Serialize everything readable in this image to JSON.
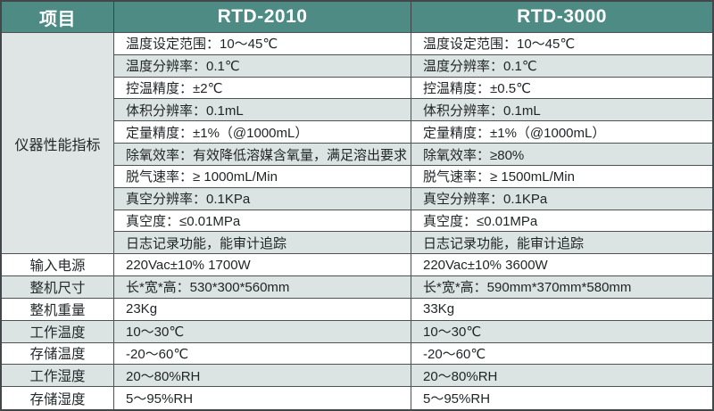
{
  "colors": {
    "header_bg": "#4e8b85",
    "header_text": "#ffffff",
    "row_white": "#ffffff",
    "row_gray": "#dce4e3",
    "group_cell_bg": "#dee5e4",
    "border": "#4d5254",
    "text": "#1f2425"
  },
  "table": {
    "header": {
      "item": "项目",
      "col_rtd2010": "RTD-2010",
      "col_rtd3000": "RTD-3000"
    },
    "performance_group": "仪器性能指标",
    "performance_rows": [
      {
        "rtd2010": "温度设定范围：10～45℃",
        "rtd3000": "温度设定范围：10～45℃"
      },
      {
        "rtd2010": "温度分辨率：0.1℃",
        "rtd3000": "温度分辨率：0.1℃"
      },
      {
        "rtd2010": "控温精度：±2℃",
        "rtd3000": "控温精度：±0.5℃"
      },
      {
        "rtd2010": "体积分辨率：0.1mL",
        "rtd3000": "体积分辨率：0.1mL"
      },
      {
        "rtd2010": "定量精度：±1%（@1000mL）",
        "rtd3000": "定量精度：±1%（@1000mL）"
      },
      {
        "rtd2010": "除氧效率：有效降低溶媒含氧量，满足溶出要求",
        "rtd3000": "除氧效率：≥80%"
      },
      {
        "rtd2010": "脱气速率：≥ 1000mL/Min",
        "rtd3000": "脱气速率：≥ 1500mL/Min"
      },
      {
        "rtd2010": "真空分辨率：0.1KPa",
        "rtd3000": "真空分辨率：0.1KPa"
      },
      {
        "rtd2010": "真空度：≤0.01MPa",
        "rtd3000": "真空度：≤0.01MPa"
      },
      {
        "rtd2010": "日志记录功能，能审计追踪",
        "rtd3000": "日志记录功能，能审计追踪"
      }
    ],
    "spec_rows": [
      {
        "label": "输入电源",
        "rtd2010": "220Vac±10% 1700W",
        "rtd3000": "220Vac±10% 3600W"
      },
      {
        "label": "整机尺寸",
        "rtd2010": "长*宽*高：530*300*560mm",
        "rtd3000": "长*宽*高：590mm*370mm*580mm"
      },
      {
        "label": "整机重量",
        "rtd2010": "23Kg",
        "rtd3000": "33Kg"
      },
      {
        "label": "工作温度",
        "rtd2010": "10～30℃",
        "rtd3000": "10～30℃"
      },
      {
        "label": "存储温度",
        "rtd2010": "-20～60℃",
        "rtd3000": "-20～60℃"
      },
      {
        "label": "工作湿度",
        "rtd2010": "20～80%RH",
        "rtd3000": "20～80%RH"
      },
      {
        "label": "存储湿度",
        "rtd2010": "5～95%RH",
        "rtd3000": "5～95%RH"
      }
    ]
  }
}
